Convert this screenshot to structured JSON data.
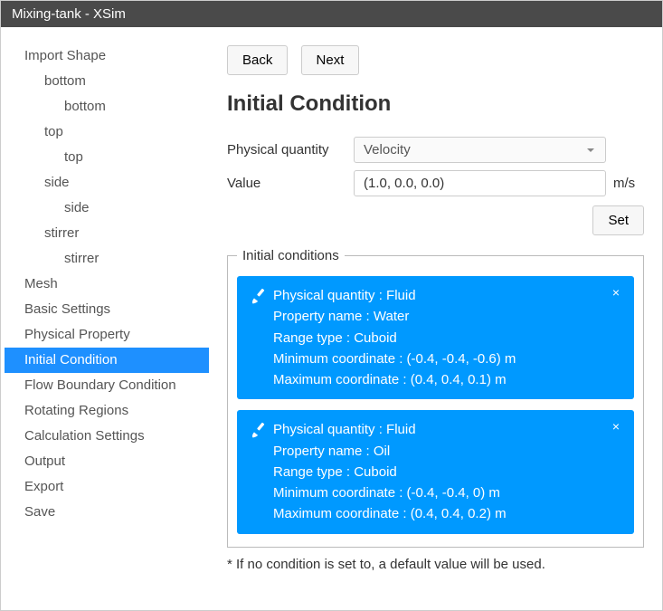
{
  "window": {
    "title": "Mixing-tank - XSim"
  },
  "sidebar": {
    "items": [
      {
        "label": "Import Shape",
        "level": 0,
        "selected": false
      },
      {
        "label": "bottom",
        "level": 1,
        "selected": false
      },
      {
        "label": "bottom",
        "level": 2,
        "selected": false
      },
      {
        "label": "top",
        "level": 1,
        "selected": false
      },
      {
        "label": "top",
        "level": 2,
        "selected": false
      },
      {
        "label": "side",
        "level": 1,
        "selected": false
      },
      {
        "label": "side",
        "level": 2,
        "selected": false
      },
      {
        "label": "stirrer",
        "level": 1,
        "selected": false
      },
      {
        "label": "stirrer",
        "level": 2,
        "selected": false
      },
      {
        "label": "Mesh",
        "level": 0,
        "selected": false
      },
      {
        "label": "Basic Settings",
        "level": 0,
        "selected": false
      },
      {
        "label": "Physical Property",
        "level": 0,
        "selected": false
      },
      {
        "label": "Initial Condition",
        "level": 0,
        "selected": true
      },
      {
        "label": "Flow Boundary Condition",
        "level": 0,
        "selected": false
      },
      {
        "label": "Rotating Regions",
        "level": 0,
        "selected": false
      },
      {
        "label": "Calculation Settings",
        "level": 0,
        "selected": false
      },
      {
        "label": "Output",
        "level": 0,
        "selected": false
      },
      {
        "label": "Export",
        "level": 0,
        "selected": false
      },
      {
        "label": "Save",
        "level": 0,
        "selected": false
      }
    ]
  },
  "nav": {
    "back": "Back",
    "next": "Next"
  },
  "page": {
    "title": "Initial Condition",
    "physical_quantity_label": "Physical quantity",
    "physical_quantity_value": "Velocity",
    "value_label": "Value",
    "value_input": "(1.0, 0.0, 0.0)",
    "value_unit": "m/s",
    "set_button": "Set",
    "conditions_legend": "Initial conditions",
    "footnote": "* If no condition is set to, a default value will be used."
  },
  "conditions": [
    {
      "lines": [
        "Physical quantity : Fluid",
        "Property name : Water",
        "Range type : Cuboid",
        "Minimum coordinate : (-0.4, -0.4, -0.6) m",
        "Maximum coordinate : (0.4, 0.4, 0.1) m"
      ]
    },
    {
      "lines": [
        "Physical quantity : Fluid",
        "Property name : Oil",
        "Range type : Cuboid",
        "Minimum coordinate : (-0.4, -0.4, 0) m",
        "Maximum coordinate : (0.4, 0.4, 0.2) m"
      ]
    }
  ],
  "colors": {
    "titlebar_bg": "#4a4a4a",
    "accent": "#1e90ff",
    "card_bg": "#0099ff"
  }
}
